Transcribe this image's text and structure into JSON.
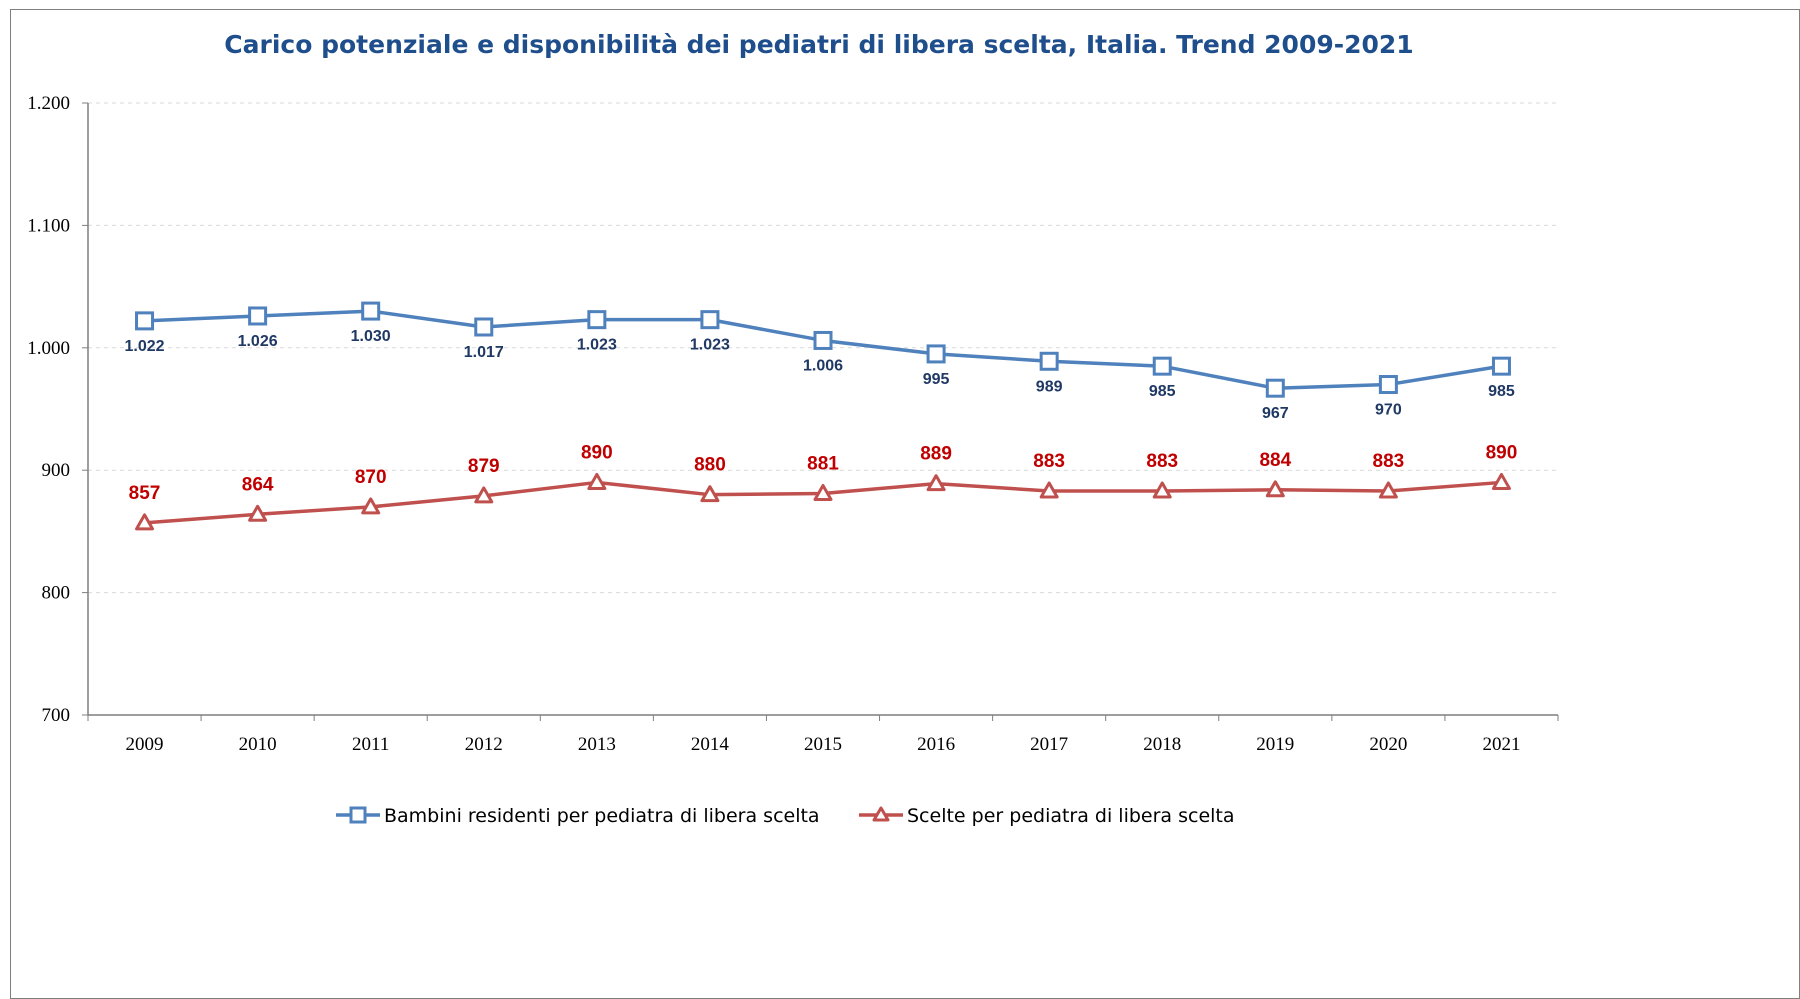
{
  "chart_data": {
    "type": "line",
    "title": "Carico potenziale e disponibilità dei pediatri di libera scelta, Italia. Trend 2009-2021",
    "xlabel": "",
    "ylabel": "",
    "categories": [
      "2009",
      "2010",
      "2011",
      "2012",
      "2013",
      "2014",
      "2015",
      "2016",
      "2017",
      "2018",
      "2019",
      "2020",
      "2021"
    ],
    "ylim": [
      700,
      1200
    ],
    "yticks": [
      700,
      800,
      900,
      1000,
      1100,
      1200
    ],
    "ytick_labels": [
      "700",
      "800",
      "900",
      "1.000",
      "1.100",
      "1.200"
    ],
    "grid": "horizontal dashed",
    "legend_position": "bottom",
    "series": [
      {
        "name": "Bambini residenti per pediatra di libera scelta",
        "color": "#4f81bd",
        "label_color": "#1f3864",
        "marker": "square",
        "label_position": "below",
        "values": [
          1022,
          1026,
          1030,
          1017,
          1023,
          1023,
          1006,
          995,
          989,
          985,
          967,
          970,
          985
        ],
        "labels": [
          "1.022",
          "1.026",
          "1.030",
          "1.017",
          "1.023",
          "1.023",
          "1.006",
          "995",
          "989",
          "985",
          "967",
          "970",
          "985"
        ]
      },
      {
        "name": "Scelte per pediatra di libera scelta",
        "color": "#c0504d",
        "label_color": "#c00000",
        "marker": "triangle",
        "label_position": "above",
        "values": [
          857,
          864,
          870,
          879,
          890,
          880,
          881,
          889,
          883,
          883,
          884,
          883,
          890
        ],
        "labels": [
          "857",
          "864",
          "870",
          "879",
          "890",
          "880",
          "881",
          "889",
          "883",
          "883",
          "884",
          "883",
          "890"
        ]
      }
    ]
  }
}
